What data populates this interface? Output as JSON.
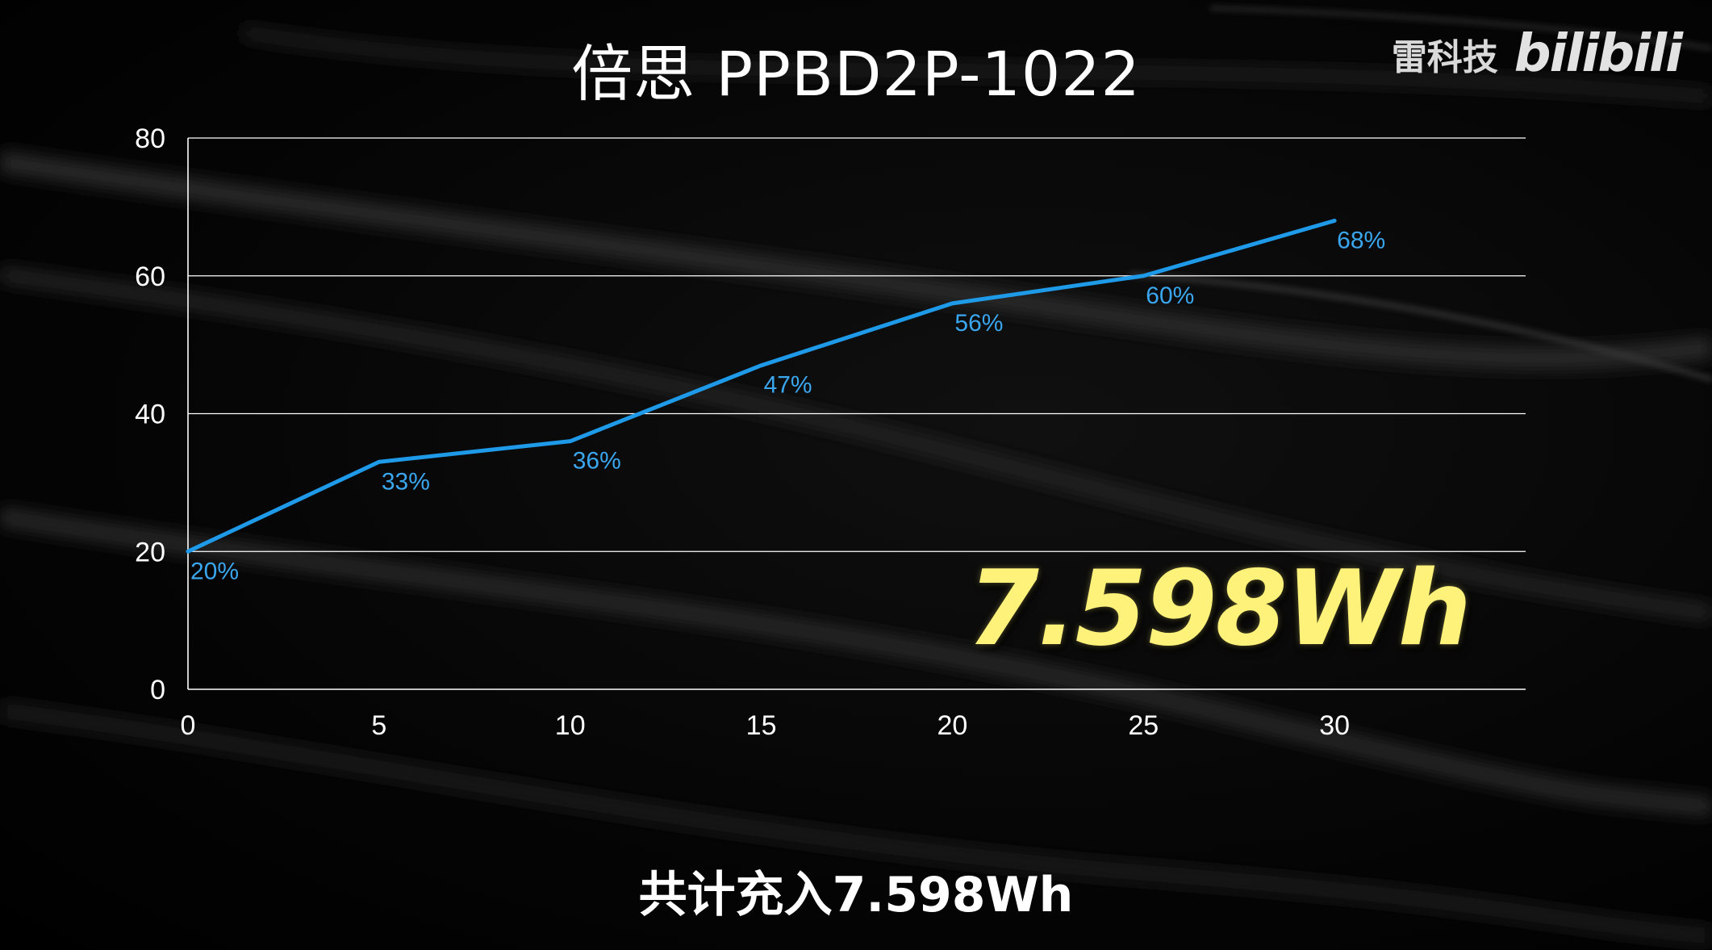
{
  "header": {
    "title": "倍思 PPBD2P-1022",
    "brand_name": "雷科技",
    "brand_logo": "bilibili"
  },
  "highlight": {
    "value": "7.598Wh",
    "color": "#fff27a"
  },
  "caption": {
    "text": "共计充入7.598Wh"
  },
  "colors": {
    "line": "#1e9ae8",
    "label": "#3aa6ee",
    "grid": "#ffffff",
    "axis_text": "#ffffff"
  },
  "chart_data": {
    "type": "line",
    "title": "倍思 PPBD2P-1022",
    "xlabel": "",
    "ylabel": "",
    "x": [
      0,
      5,
      10,
      15,
      20,
      25,
      30
    ],
    "series": [
      {
        "values": [
          20,
          33,
          36,
          47,
          56,
          60,
          68
        ],
        "labels": [
          "20%",
          "33%",
          "36%",
          "47%",
          "56%",
          "60%",
          "68%"
        ]
      }
    ],
    "xlim": [
      0,
      35
    ],
    "ylim": [
      0,
      80
    ],
    "x_ticks": [
      "0",
      "5",
      "10",
      "15",
      "20",
      "25",
      "30"
    ],
    "y_ticks": [
      "0",
      "20",
      "40",
      "60",
      "80"
    ],
    "grid": "horizontal",
    "legend": "none"
  }
}
